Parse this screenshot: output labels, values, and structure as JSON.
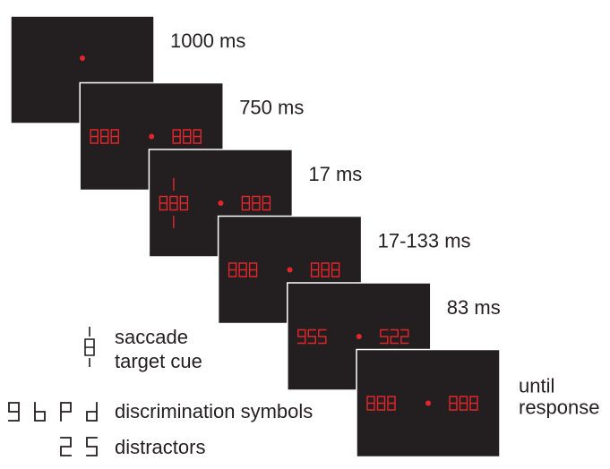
{
  "screens": [
    {
      "duration": [
        "1000 ms"
      ]
    },
    {
      "duration": [
        "750 ms"
      ],
      "left": "888",
      "right": "888"
    },
    {
      "duration": [
        "17 ms"
      ],
      "left": "888",
      "right": "888",
      "cue": true
    },
    {
      "duration": [
        "17-133 ms"
      ],
      "left": "888",
      "right": "888"
    },
    {
      "duration": [
        "83 ms"
      ],
      "left": "955",
      "right": "522"
    },
    {
      "duration": [
        "until",
        "response"
      ],
      "left": "888",
      "right": "888"
    }
  ],
  "legend": {
    "cue": {
      "glyph": "8",
      "label": [
        "saccade",
        "target cue"
      ]
    },
    "symbols": {
      "glyphs": [
        "9",
        "b",
        "P",
        "d"
      ],
      "label": "discrimination symbols"
    },
    "distractors": {
      "glyphs": [
        "2",
        "5"
      ],
      "label": "distractors"
    }
  }
}
